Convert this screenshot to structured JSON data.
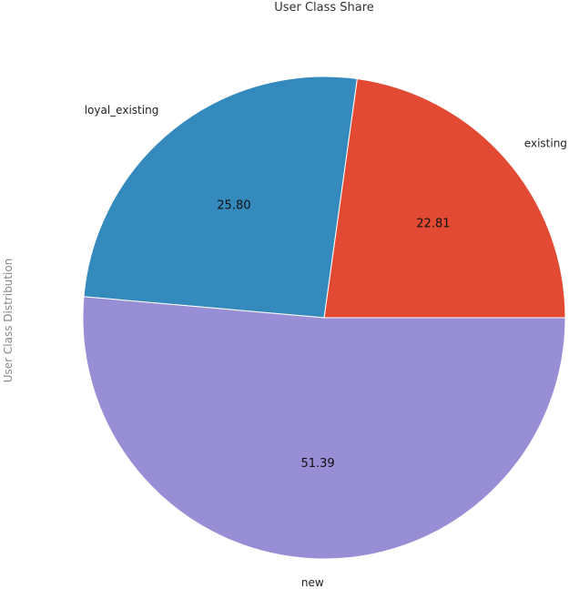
{
  "chart_data": {
    "type": "pie",
    "title": "User Class Share",
    "ylabel": "User Class Distribution",
    "start_angle_deg": 0,
    "direction": "counterclockwise",
    "slices": [
      {
        "label": "existing",
        "value": 22.81,
        "display": "22.81",
        "color": "#E24A33"
      },
      {
        "label": "loyal_existing",
        "value": 25.8,
        "display": "25.80",
        "color": "#348ABD"
      },
      {
        "label": "new",
        "value": 51.39,
        "display": "51.39",
        "color": "#988ED5"
      }
    ]
  }
}
